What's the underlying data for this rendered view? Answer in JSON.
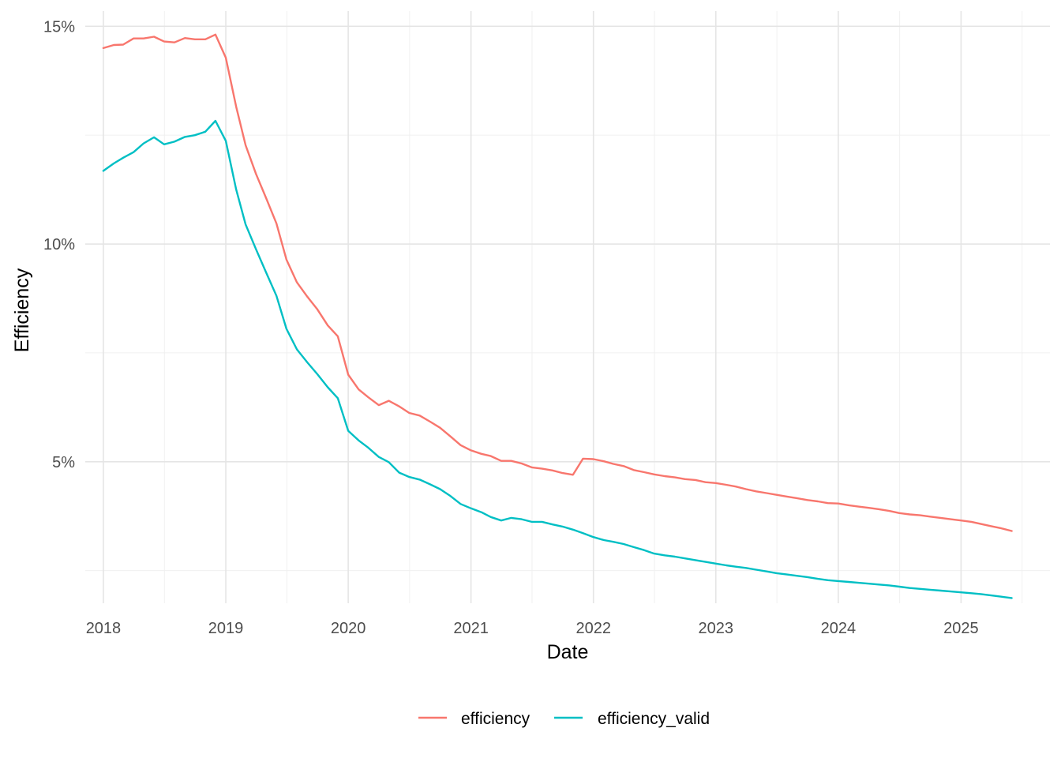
{
  "chart_data": {
    "type": "line",
    "xlabel": "Date",
    "ylabel": "Efficiency",
    "x_ticks": [
      "2018",
      "2019",
      "2020",
      "2021",
      "2022",
      "2023",
      "2024",
      "2025"
    ],
    "y_ticks": [
      "5%",
      "10%",
      "15%"
    ],
    "xlim": [
      "2017-11-08",
      "2025-09-23"
    ],
    "ylim": [
      0.0175,
      0.1535
    ],
    "grid": true,
    "legend_position": "bottom",
    "colors": {
      "efficiency": "#F8766D",
      "efficiency_valid": "#00BFC4"
    },
    "x": [
      "2018-01",
      "2018-02",
      "2018-03",
      "2018-04",
      "2018-05",
      "2018-06",
      "2018-07",
      "2018-08",
      "2018-09",
      "2018-10",
      "2018-11",
      "2018-12",
      "2019-01",
      "2019-02",
      "2019-03",
      "2019-04",
      "2019-05",
      "2019-06",
      "2019-07",
      "2019-08",
      "2019-09",
      "2019-10",
      "2019-11",
      "2019-12",
      "2020-01",
      "2020-02",
      "2020-03",
      "2020-04",
      "2020-05",
      "2020-06",
      "2020-07",
      "2020-08",
      "2020-09",
      "2020-10",
      "2020-11",
      "2020-12",
      "2021-01",
      "2021-02",
      "2021-03",
      "2021-04",
      "2021-05",
      "2021-06",
      "2021-07",
      "2021-08",
      "2021-09",
      "2021-10",
      "2021-11",
      "2021-12",
      "2022-01",
      "2022-02",
      "2022-03",
      "2022-04",
      "2022-05",
      "2022-06",
      "2022-07",
      "2022-08",
      "2022-09",
      "2022-10",
      "2022-11",
      "2022-12",
      "2023-01",
      "2023-02",
      "2023-03",
      "2023-04",
      "2023-05",
      "2023-06",
      "2023-07",
      "2023-08",
      "2023-09",
      "2023-10",
      "2023-11",
      "2023-12",
      "2024-01",
      "2024-02",
      "2024-03",
      "2024-04",
      "2024-05",
      "2024-06",
      "2024-07",
      "2024-08",
      "2024-09",
      "2024-10",
      "2024-11",
      "2024-12",
      "2025-01",
      "2025-02",
      "2025-03",
      "2025-04",
      "2025-05",
      "2025-06"
    ],
    "series": [
      {
        "name": "efficiency",
        "values": [
          0.145,
          0.1457,
          0.1458,
          0.1472,
          0.1472,
          0.1476,
          0.1465,
          0.1463,
          0.1473,
          0.147,
          0.147,
          0.1481,
          0.1428,
          0.1315,
          0.1227,
          0.1161,
          0.1106,
          0.1047,
          0.0964,
          0.0912,
          0.0879,
          0.085,
          0.0813,
          0.0788,
          0.07,
          0.0666,
          0.0648,
          0.063,
          0.064,
          0.0627,
          0.0612,
          0.0606,
          0.0592,
          0.0578,
          0.0558,
          0.0538,
          0.0526,
          0.0518,
          0.0513,
          0.0502,
          0.0502,
          0.0496,
          0.0487,
          0.0484,
          0.048,
          0.0474,
          0.047,
          0.0507,
          0.0506,
          0.0501,
          0.0495,
          0.049,
          0.0481,
          0.0476,
          0.0471,
          0.0467,
          0.0464,
          0.046,
          0.0458,
          0.0453,
          0.0451,
          0.0447,
          0.0443,
          0.0437,
          0.0432,
          0.0428,
          0.0424,
          0.042,
          0.0416,
          0.0412,
          0.0409,
          0.0405,
          0.0404,
          0.04,
          0.0397,
          0.0394,
          0.0391,
          0.0387,
          0.0382,
          0.0379,
          0.0377,
          0.0374,
          0.0371,
          0.0368,
          0.0365,
          0.0362,
          0.0357,
          0.0352,
          0.0347,
          0.0341
        ]
      },
      {
        "name": "efficiency_valid",
        "values": [
          0.1168,
          0.1185,
          0.1198,
          0.1211,
          0.1231,
          0.1245,
          0.1229,
          0.1235,
          0.1246,
          0.125,
          0.1258,
          0.1283,
          0.1237,
          0.1125,
          0.1045,
          0.0988,
          0.0935,
          0.0881,
          0.0805,
          0.0758,
          0.0728,
          0.0701,
          0.0671,
          0.0646,
          0.0571,
          0.0549,
          0.0532,
          0.0511,
          0.0499,
          0.0475,
          0.0465,
          0.0459,
          0.0448,
          0.0437,
          0.0421,
          0.0403,
          0.0393,
          0.0384,
          0.0373,
          0.0365,
          0.0371,
          0.0368,
          0.0362,
          0.0362,
          0.0356,
          0.0351,
          0.0344,
          0.0336,
          0.0327,
          0.032,
          0.0316,
          0.0311,
          0.0304,
          0.0297,
          0.0289,
          0.0285,
          0.0282,
          0.0278,
          0.0274,
          0.027,
          0.0266,
          0.0262,
          0.0259,
          0.0256,
          0.0252,
          0.0248,
          0.0244,
          0.0241,
          0.0238,
          0.0235,
          0.0231,
          0.0228,
          0.0226,
          0.0224,
          0.0222,
          0.022,
          0.0218,
          0.0216,
          0.0213,
          0.021,
          0.0208,
          0.0206,
          0.0204,
          0.0202,
          0.02,
          0.0198,
          0.0196,
          0.0193,
          0.019,
          0.0187
        ]
      }
    ]
  }
}
